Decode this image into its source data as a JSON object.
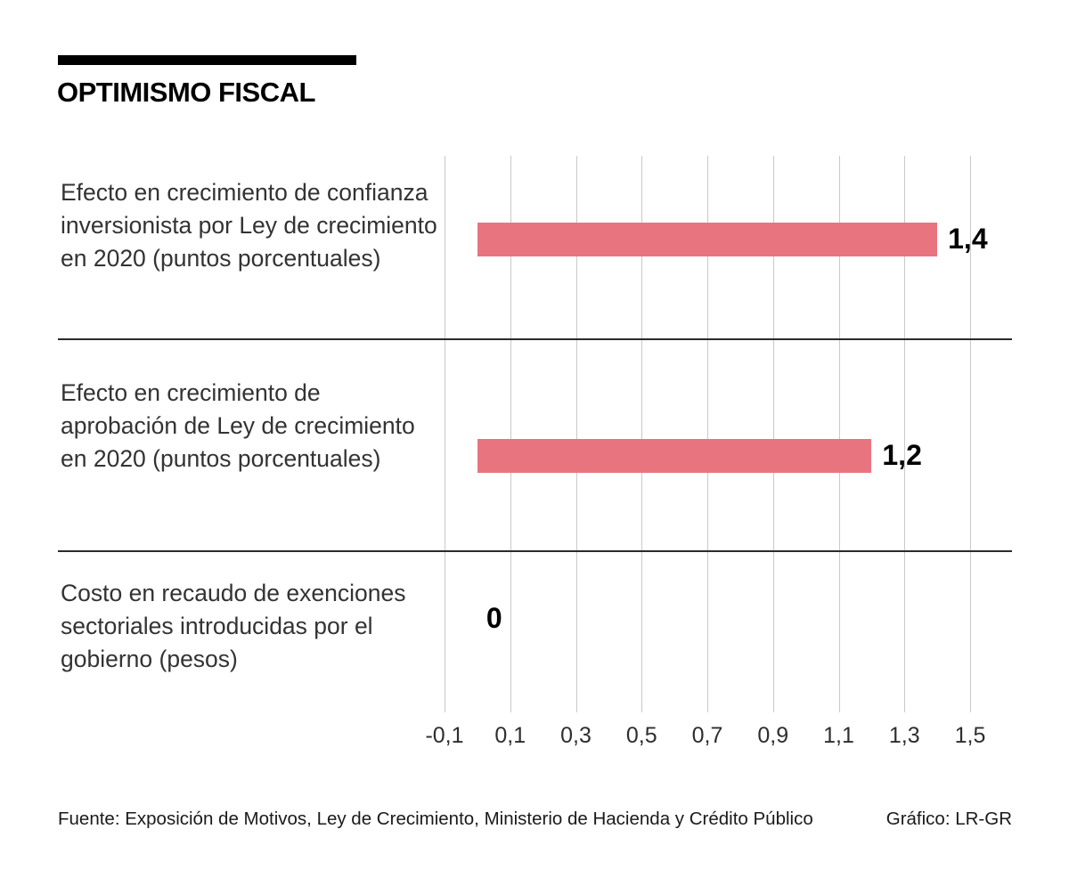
{
  "chart_data": {
    "type": "bar",
    "orientation": "horizontal",
    "title": "OPTIMISMO FISCAL",
    "categories": [
      "Efecto en crecimiento de confianza inversionista por Ley de crecimiento en 2020 (puntos porcentuales)",
      "Efecto en crecimiento de aprobación de Ley de crecimiento en 2020 (puntos porcentuales)",
      "Costo en recaudo de exenciones sectoriales introducidas por el gobierno (pesos)"
    ],
    "values": [
      1.4,
      1.2,
      0
    ],
    "value_labels": [
      "1,4",
      "1,2",
      "0"
    ],
    "xlim": [
      -0.1,
      1.5
    ],
    "x_ticks": [
      -0.1,
      0.1,
      0.3,
      0.5,
      0.7,
      0.9,
      1.1,
      1.3,
      1.5
    ],
    "x_tick_labels": [
      "-0,1",
      "0,1",
      "0,3",
      "0,5",
      "0,7",
      "0,9",
      "1,1",
      "1,3",
      "1,5"
    ],
    "bar_color": "#e8747f",
    "grid": true,
    "legend": false
  },
  "footer": {
    "source": "Fuente: Exposición de Motivos, Ley de Crecimiento, Ministerio de Hacienda y Crédito Público",
    "credit": "Gráfico: LR-GR"
  }
}
